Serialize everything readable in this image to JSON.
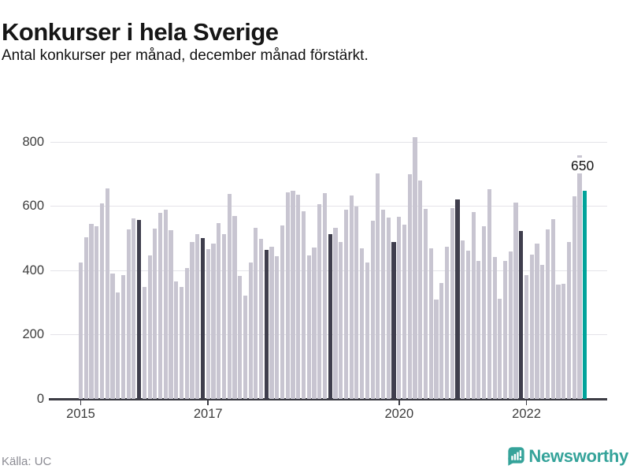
{
  "header": {
    "title": "Konkurser i hela Sverige",
    "subtitle": "Antal konkurser per månad, december månad förstärkt."
  },
  "chart_data": {
    "type": "bar",
    "title": "Konkurser i hela Sverige",
    "subtitle": "Antal konkurser per månad, december månad förstärkt.",
    "ylabel": "",
    "xlabel": "",
    "grid": "horizontal",
    "legend": "none",
    "ylim": [
      0,
      840
    ],
    "y_ticks": [
      0,
      200,
      400,
      600,
      800
    ],
    "x_ticks": [
      {
        "label": "2015",
        "month_index": 0
      },
      {
        "label": "2017",
        "month_index": 24
      },
      {
        "label": "2020",
        "month_index": 60
      },
      {
        "label": "2022",
        "month_index": 84
      }
    ],
    "highlight_rule": "december bars dark, latest month teal",
    "colors": {
      "bar": "#c8c5d1",
      "december": "#3f3e4d",
      "latest": "#00a39a",
      "gridline": "#e4e3e8",
      "axis": "#3c3c44"
    },
    "annotation": {
      "text": "650",
      "month_index": 95
    },
    "months": [
      "2015-01",
      "2015-02",
      "2015-03",
      "2015-04",
      "2015-05",
      "2015-06",
      "2015-07",
      "2015-08",
      "2015-09",
      "2015-10",
      "2015-11",
      "2015-12",
      "2016-01",
      "2016-02",
      "2016-03",
      "2016-04",
      "2016-05",
      "2016-06",
      "2016-07",
      "2016-08",
      "2016-09",
      "2016-10",
      "2016-11",
      "2016-12",
      "2017-01",
      "2017-02",
      "2017-03",
      "2017-04",
      "2017-05",
      "2017-06",
      "2017-07",
      "2017-08",
      "2017-09",
      "2017-10",
      "2017-11",
      "2017-12",
      "2018-01",
      "2018-02",
      "2018-03",
      "2018-04",
      "2018-05",
      "2018-06",
      "2018-07",
      "2018-08",
      "2018-09",
      "2018-10",
      "2018-11",
      "2018-12",
      "2019-01",
      "2019-02",
      "2019-03",
      "2019-04",
      "2019-05",
      "2019-06",
      "2019-07",
      "2019-08",
      "2019-09",
      "2019-10",
      "2019-11",
      "2019-12",
      "2020-01",
      "2020-02",
      "2020-03",
      "2020-04",
      "2020-05",
      "2020-06",
      "2020-07",
      "2020-08",
      "2020-09",
      "2020-10",
      "2020-11",
      "2020-12",
      "2021-01",
      "2021-02",
      "2021-03",
      "2021-04",
      "2021-05",
      "2021-06",
      "2021-07",
      "2021-08",
      "2021-09",
      "2021-10",
      "2021-11",
      "2021-12",
      "2022-01",
      "2022-02",
      "2022-03",
      "2022-04",
      "2022-05",
      "2022-06",
      "2022-07",
      "2022-08",
      "2022-09",
      "2022-10",
      "2022-11",
      "2022-12"
    ],
    "values": [
      426,
      505,
      545,
      538,
      610,
      657,
      391,
      332,
      385,
      529,
      563,
      559,
      348,
      447,
      530,
      579,
      590,
      526,
      366,
      350,
      407,
      489,
      514,
      501,
      466,
      483,
      548,
      514,
      639,
      571,
      384,
      321,
      425,
      534,
      499,
      465,
      474,
      444,
      540,
      645,
      649,
      636,
      585,
      447,
      472,
      608,
      641,
      514,
      534,
      488,
      589,
      634,
      600,
      470,
      426,
      555,
      702,
      591,
      566,
      490,
      567,
      544,
      700,
      815,
      680,
      592,
      469,
      309,
      361,
      475,
      596,
      622,
      493,
      462,
      582,
      429,
      538,
      653,
      442,
      312,
      429,
      460,
      612,
      524,
      385,
      450,
      483,
      418,
      528,
      560,
      356,
      359,
      488,
      631,
      760,
      650
    ]
  },
  "footer": {
    "source": "Källa: UC",
    "brand": "Newsworthy"
  }
}
